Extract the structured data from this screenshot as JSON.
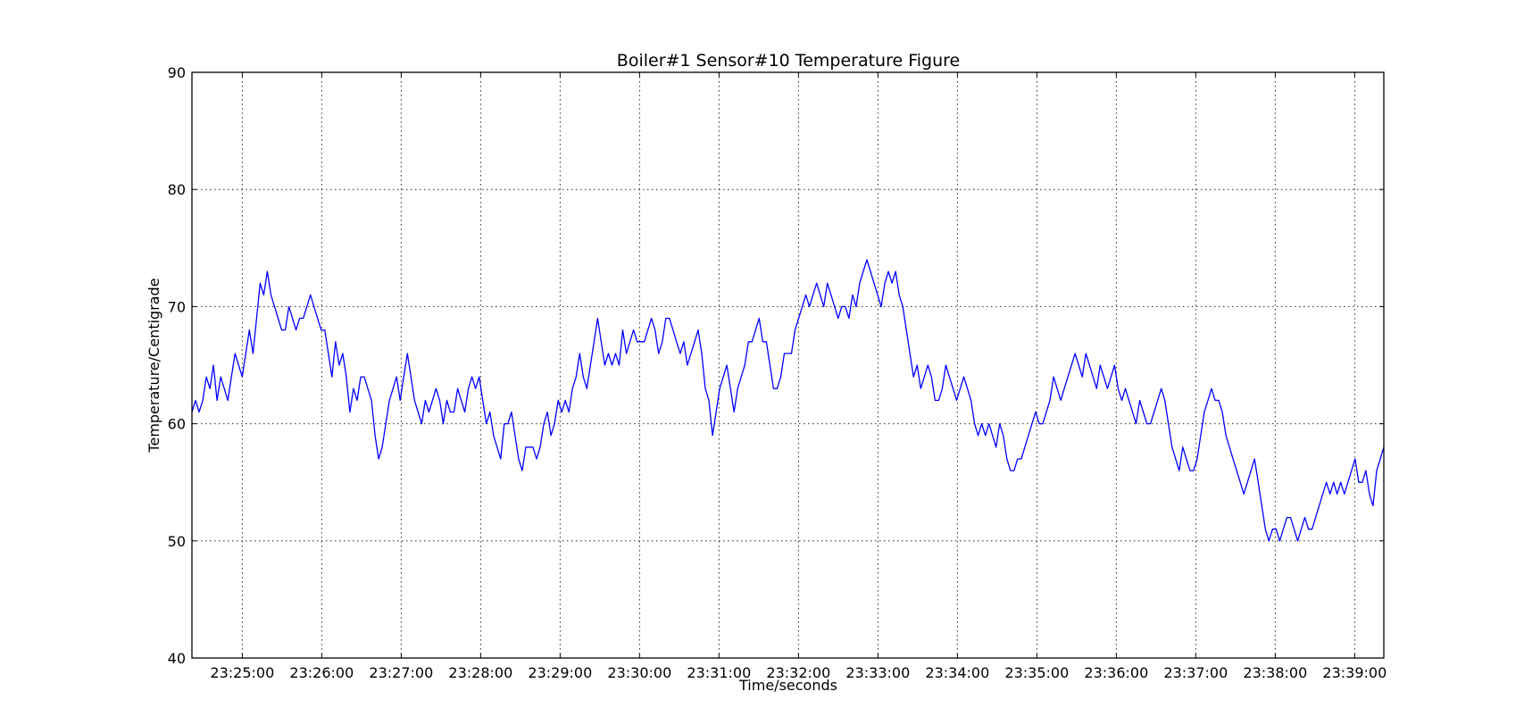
{
  "chart_data": {
    "type": "line",
    "title": "Boiler#1 Sensor#10 Temperature Figure",
    "xlabel": "Time/seconds",
    "ylabel": "Temperature/Centigrade",
    "xlim": [
      "23:24:22",
      "23:39:22"
    ],
    "ylim": [
      40,
      90
    ],
    "y_ticks": [
      40,
      50,
      60,
      70,
      80,
      90
    ],
    "x_ticks": [
      "23:25:00",
      "23:26:00",
      "23:27:00",
      "23:28:00",
      "23:29:00",
      "23:30:00",
      "23:31:00",
      "23:32:00",
      "23:33:00",
      "23:34:00",
      "23:35:00",
      "23:36:00",
      "23:37:00",
      "23:38:00",
      "23:39:00"
    ],
    "grid": true,
    "line_color": "#0000ff",
    "series": [
      {
        "x_start": "23:24:22",
        "x_step_seconds": 5,
        "values": [
          61,
          62,
          61,
          62,
          64,
          63,
          65,
          62,
          64,
          63,
          62,
          64,
          66,
          65,
          64,
          66,
          68,
          66,
          69,
          72,
          71,
          73,
          71,
          70,
          69,
          68,
          68,
          70,
          69,
          68,
          69,
          69,
          70,
          71,
          70,
          69,
          68,
          68,
          66,
          64,
          67,
          65,
          66,
          64,
          61,
          63,
          62,
          64,
          64,
          63,
          62,
          59,
          57,
          58,
          60,
          62,
          63,
          64,
          62,
          64,
          66,
          64,
          62,
          61,
          60,
          62,
          61,
          62,
          63,
          62,
          60,
          62,
          61,
          61,
          63,
          62,
          61,
          63,
          64,
          63,
          64,
          62,
          60,
          61,
          59,
          58,
          57,
          60,
          60,
          61,
          59,
          57,
          56,
          58,
          58,
          58,
          57,
          58,
          60,
          61,
          59,
          60,
          62,
          61,
          62,
          61,
          63,
          64,
          66,
          64,
          63,
          65,
          67,
          69,
          67,
          65,
          66,
          65,
          66,
          65,
          68,
          66,
          67,
          68,
          67,
          67,
          67,
          68,
          69,
          68,
          66,
          67,
          69,
          69,
          68,
          67,
          66,
          67,
          65,
          66,
          67,
          68,
          66,
          63,
          62,
          59,
          61,
          63,
          64,
          65,
          63,
          61,
          63,
          64,
          65,
          67,
          67,
          68,
          69,
          67,
          67,
          65,
          63,
          63,
          64,
          66,
          66,
          66,
          68,
          69,
          70,
          71,
          70,
          71,
          72,
          71,
          70,
          72,
          71,
          70,
          69,
          70,
          70,
          69,
          71,
          70,
          72,
          73,
          74,
          73,
          72,
          71,
          70,
          72,
          73,
          72,
          73,
          71,
          70,
          68,
          66,
          64,
          65,
          63,
          64,
          65,
          64,
          62,
          62,
          63,
          65,
          64,
          63,
          62,
          63,
          64,
          63,
          62,
          60,
          59,
          60,
          59,
          60,
          59,
          58,
          60,
          59,
          57,
          56,
          56,
          57,
          57,
          58,
          59,
          60,
          61,
          60,
          60,
          61,
          62,
          64,
          63,
          62,
          63,
          64,
          65,
          66,
          65,
          64,
          66,
          65,
          64,
          63,
          65,
          64,
          63,
          64,
          65,
          63,
          62,
          63,
          62,
          61,
          60,
          62,
          61,
          60,
          60,
          61,
          62,
          63,
          62,
          60,
          58,
          57,
          56,
          58,
          57,
          56,
          56,
          57,
          59,
          61,
          62,
          63,
          62,
          62,
          61,
          59,
          58,
          57,
          56,
          55,
          54,
          55,
          56,
          57,
          55,
          53,
          51,
          50,
          51,
          51,
          50,
          51,
          52,
          52,
          51,
          50,
          51,
          52,
          51,
          51,
          52,
          53,
          54,
          55,
          54,
          55,
          54,
          55,
          54,
          55,
          56,
          57,
          55,
          55,
          56,
          54,
          53,
          56,
          57,
          58
        ]
      }
    ]
  }
}
